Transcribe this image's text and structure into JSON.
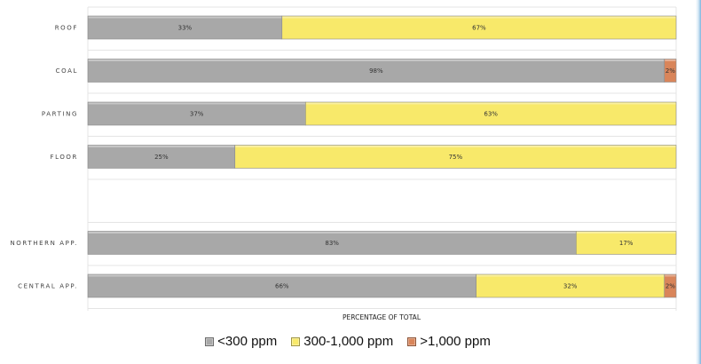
{
  "chart_data": {
    "type": "bar",
    "orientation": "horizontal",
    "stacked": true,
    "percent": true,
    "categories": [
      "ROOF",
      "COAL",
      "PARTING",
      "FLOOR",
      "",
      "NORTHERN APP.",
      "CENTRAL APP."
    ],
    "series": [
      {
        "name": "<300 ppm",
        "color": "#a8a8a8",
        "values": [
          33,
          98,
          37,
          25,
          null,
          83,
          66
        ]
      },
      {
        "name": "300-1,000 ppm",
        "color": "#f8e96a",
        "values": [
          67,
          0,
          63,
          75,
          null,
          17,
          32
        ]
      },
      {
        "name": ">1,000 ppm",
        "color": "#d9855a",
        "values": [
          0,
          2,
          0,
          0,
          null,
          0,
          2
        ]
      }
    ],
    "data_labels": [
      [
        "33%",
        "98%",
        "37%",
        "25%",
        "",
        "83%",
        "66%"
      ],
      [
        "67%",
        "",
        "63%",
        "75%",
        "",
        "17%",
        "32%"
      ],
      [
        "",
        "2%",
        "",
        "",
        "",
        "",
        "2%"
      ]
    ],
    "xlabel": "PERCENTAGE OF TOTAL",
    "ylabel": "",
    "xlim": [
      0,
      100
    ],
    "grid": true,
    "legend_position": "bottom"
  }
}
